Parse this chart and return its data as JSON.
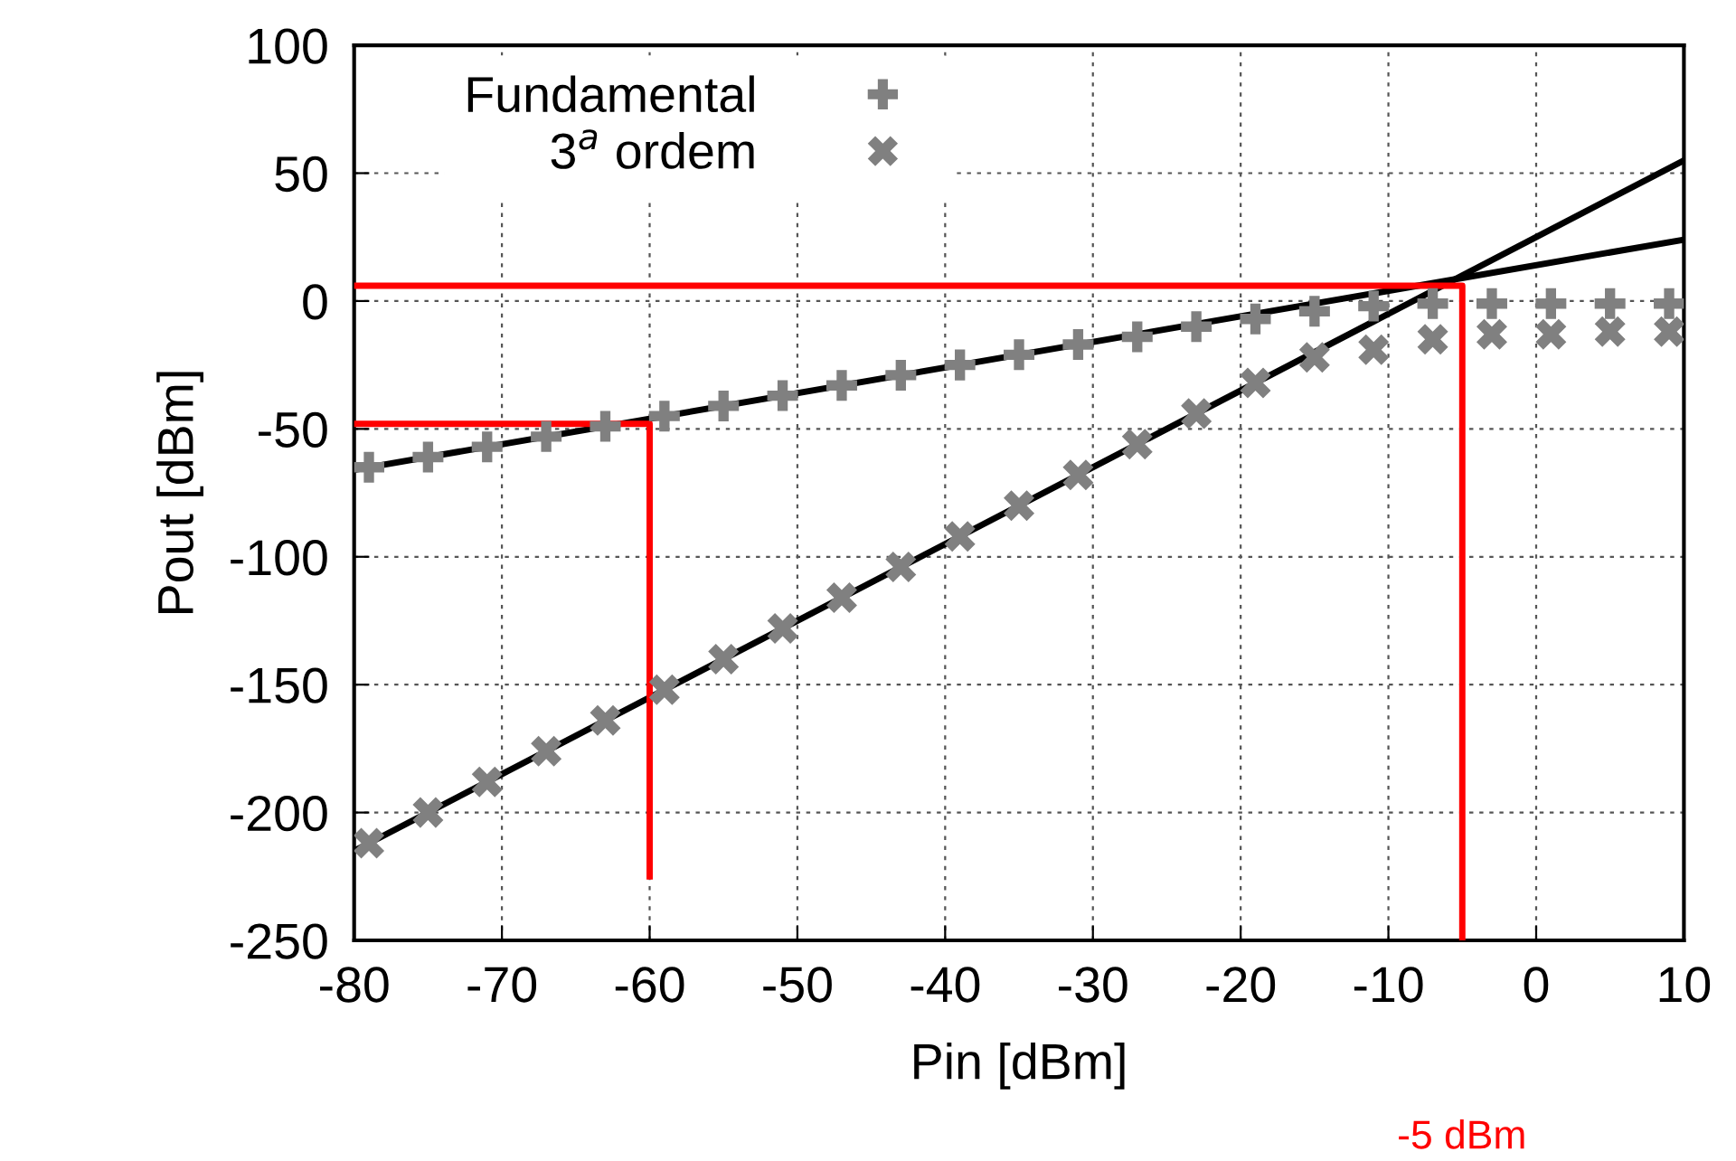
{
  "chart_data": {
    "type": "scatter",
    "xlabel": "Pin [dBm]",
    "ylabel": "Pout [dBm]",
    "xlim": [
      -80,
      10
    ],
    "xticks": [
      -80,
      -70,
      -60,
      -50,
      -40,
      -30,
      -20,
      -10,
      0,
      10
    ],
    "ylim": [
      -250,
      100
    ],
    "yticks": [
      -250,
      -200,
      -150,
      -100,
      -50,
      0,
      50,
      100
    ],
    "grid": true,
    "legend": "top left",
    "series": [
      {
        "name": "Fundamental",
        "marker": "plus",
        "color": "#808080",
        "x": [
          -79,
          -75,
          -71,
          -67,
          -63,
          -59,
          -55,
          -51,
          -47,
          -43,
          -39,
          -35,
          -31,
          -27,
          -23,
          -19,
          -15,
          -11,
          -7,
          -3,
          1,
          5,
          9
        ],
        "values": [
          -65,
          -61,
          -57,
          -53,
          -49,
          -45,
          -41,
          -37,
          -33,
          -29,
          -25,
          -21,
          -17,
          -14,
          -10,
          -7,
          -4,
          -2,
          -1,
          -1,
          -1,
          -1,
          -1
        ]
      },
      {
        "name": "3$^{a}$ ordem",
        "marker": "cross",
        "color": "#808080",
        "x": [
          -79,
          -75,
          -71,
          -67,
          -63,
          -59,
          -55,
          -51,
          -47,
          -43,
          -39,
          -35,
          -31,
          -27,
          -23,
          -19,
          -15,
          -11,
          -7,
          -3,
          1,
          5,
          9
        ],
        "values": [
          -212,
          -200,
          -188,
          -176,
          -164,
          -152,
          -140,
          -128,
          -116,
          -104,
          -92,
          -80,
          -68,
          -56,
          -44,
          -32,
          -22,
          -19,
          -15,
          -13,
          -13,
          -12,
          -12
        ]
      },
      {
        "type": "line",
        "color": "#000000",
        "x": [
          -80,
          10
        ],
        "values": [
          -66,
          24
        ]
      },
      {
        "type": "line",
        "color": "#000000",
        "x": [
          -80,
          10
        ],
        "values": [
          -215,
          55
        ]
      },
      {
        "type": "line",
        "color": "#ff0000",
        "x": [
          -80,
          -5,
          -5
        ],
        "values": [
          6,
          6,
          -250
        ]
      },
      {
        "type": "line",
        "color": "#ff0000",
        "x": [
          -80,
          -60,
          -60
        ],
        "values": [
          -48,
          -48,
          -225
        ]
      }
    ],
    "annotations": [
      "-5 dBm"
    ]
  }
}
